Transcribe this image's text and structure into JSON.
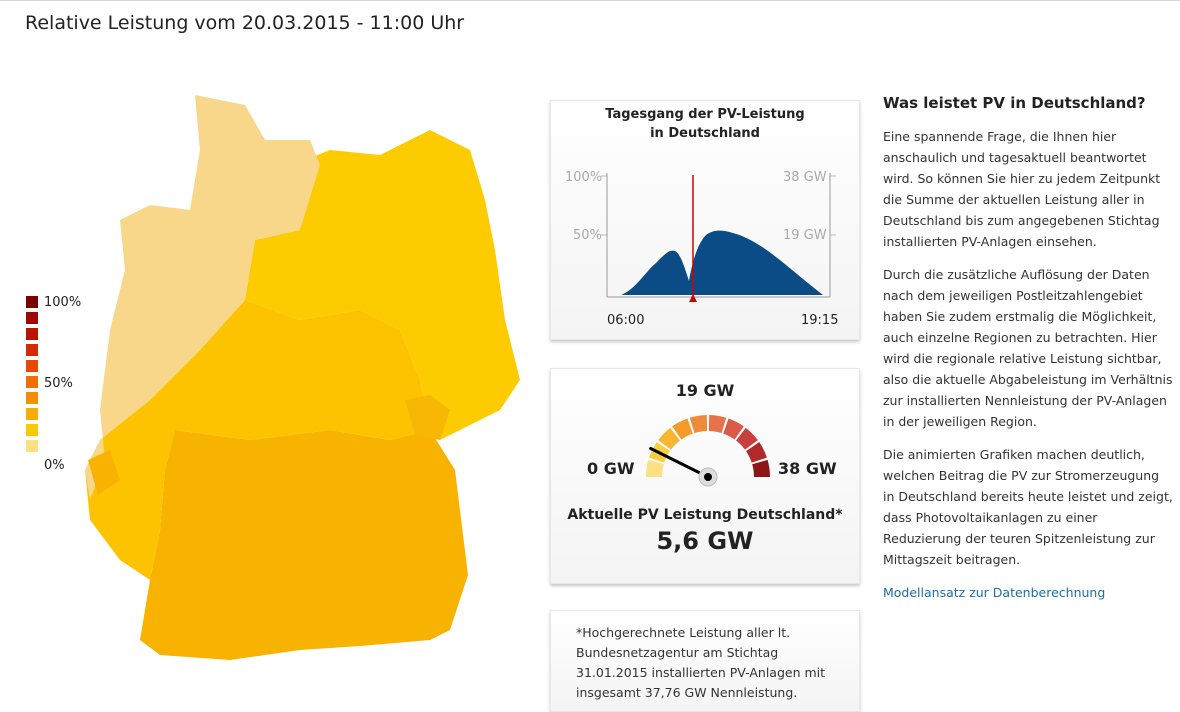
{
  "page_title": "Relative Leistung vom 20.03.2015 - 11:00 Uhr",
  "legend": {
    "labels": [
      "100%",
      "50%",
      "0%"
    ],
    "colors": [
      "#7a0000",
      "#9a0a00",
      "#b81500",
      "#d42a00",
      "#e64a00",
      "#ee6e00",
      "#f28f00",
      "#f6ac00",
      "#fac800",
      "#fde083"
    ]
  },
  "map": {
    "region_colors": {
      "north_light": "#f8d68a",
      "east_yellow": "#fccb00",
      "south_orange": "#f8b300",
      "middle_yellow": "#fdc300",
      "southeast_amber": "#f9b705"
    }
  },
  "daily_chart": {
    "title_line1": "Tagesgang der PV-Leistung",
    "title_line2": "in Deutschland",
    "y_left": [
      "100%",
      "50%"
    ],
    "y_right": [
      "38 GW",
      "19 GW"
    ],
    "x_start": "06:00",
    "x_end": "19:15",
    "fill_color": "#0b4c86",
    "marker_color": "#d40000"
  },
  "gauge": {
    "max_label": "19 GW",
    "min_label": "0 GW",
    "right_label": "38 GW",
    "current_label": "Aktuelle PV Leistung Deutschland*",
    "current_value": "5,6 GW",
    "fraction": 0.147
  },
  "note": "*Hochgerechnete Leistung aller lt. Bundesnetzagentur am Stichtag 31.01.2015 installierten PV-Anlagen mit insgesamt 37,76 GW Nennleistung.",
  "article": {
    "heading": "Was leistet PV in Deutschland?",
    "paragraphs": [
      "Eine spannende Frage, die Ihnen hier anschaulich und tagesaktuell beantwortet wird. So können Sie hier zu jedem Zeitpunkt die Summe der aktuellen Leistung aller in Deutschland bis zum angegebenen Stichtag installierten PV-Anlagen einsehen.",
      "Durch die zusätzliche Auflösung der Daten nach dem jeweiligen Postleitzahlengebiet haben Sie zudem erstmalig die Möglichkeit, auch einzelne Regionen zu betrachten. Hier wird die regionale relative Leistung sichtbar, also die aktuelle Abgabeleistung im Verhältnis zur installierten Nennleistung der PV-Anlagen in der jeweiligen Region.",
      "Die animierten Grafiken machen deutlich, welchen Beitrag die PV zur Stromerzeugung in Deutschland bereits heute leistet und zeigt, dass Photovoltaikanlagen zu einer Reduzierung der teuren Spitzenleistung zur Mittagszeit beitragen."
    ],
    "link": "Modellansatz zur Datenberechnung"
  }
}
